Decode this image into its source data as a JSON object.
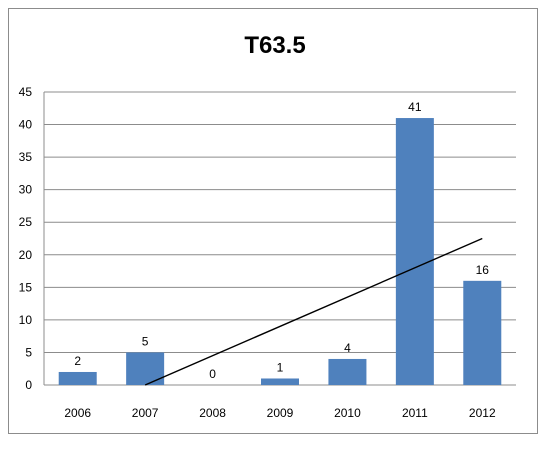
{
  "chart_data": {
    "type": "bar",
    "title": "T63.5",
    "categories": [
      "2006",
      "2007",
      "2008",
      "2009",
      "2010",
      "2011",
      "2012"
    ],
    "values": [
      2,
      5,
      0,
      1,
      4,
      41,
      16
    ],
    "data_labels": [
      "2",
      "5",
      "0",
      "1",
      "4",
      "41",
      "16"
    ],
    "ylim": [
      0,
      45
    ],
    "yticks": [
      0,
      5,
      10,
      15,
      20,
      25,
      30,
      35,
      40,
      45
    ],
    "xlabel": "",
    "ylabel": "",
    "grid": true,
    "legend": "none",
    "trendline": {
      "type": "linear",
      "start": {
        "x": "2007",
        "y": 0
      },
      "end": {
        "x": "2012",
        "y": 22.5
      }
    },
    "colors": {
      "bar": "#4f81bd",
      "grid": "#8c8c8c",
      "trendline": "#000000",
      "border": "#8c8c8c"
    }
  }
}
